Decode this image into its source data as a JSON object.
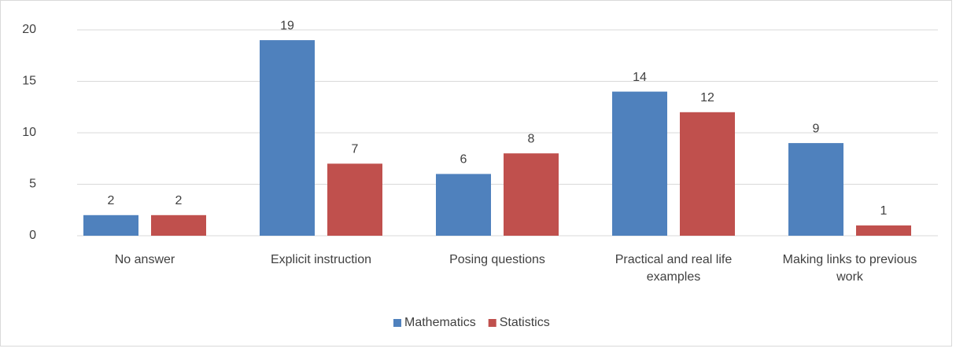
{
  "chart_data": {
    "type": "bar",
    "categories": [
      "No answer",
      "Explicit instruction",
      "Posing questions",
      "Practical and real life examples",
      "Making links to previous work"
    ],
    "series": [
      {
        "name": "Mathematics",
        "color": "#4f81bd",
        "values": [
          2,
          19,
          6,
          14,
          9
        ]
      },
      {
        "name": "Statistics",
        "color": "#c0504d",
        "values": [
          2,
          7,
          8,
          12,
          1
        ]
      }
    ],
    "ylim": [
      0,
      20
    ],
    "yticks": [
      0,
      5,
      10,
      15,
      20
    ],
    "grid": true,
    "legend": "bottom"
  }
}
